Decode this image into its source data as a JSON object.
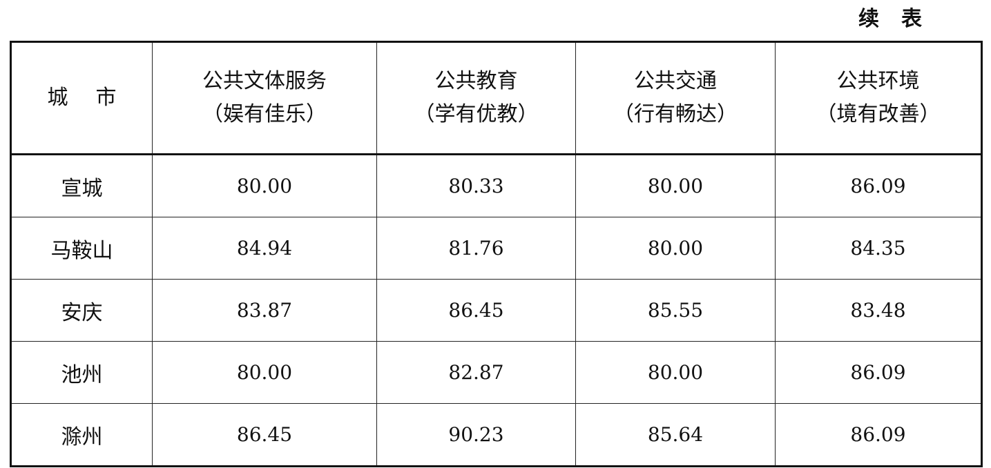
{
  "caption": [
    "续",
    "表"
  ],
  "table": {
    "headers": [
      {
        "line1": "城市",
        "line2": ""
      },
      {
        "line1": "公共文体服务",
        "line2": "（娱有佳乐）"
      },
      {
        "line1": "公共教育",
        "line2": "（学有优教）"
      },
      {
        "line1": "公共交通",
        "line2": "（行有畅达）"
      },
      {
        "line1": "公共环境",
        "line2": "（境有改善）"
      }
    ],
    "rows": [
      [
        "宣城",
        "80.00",
        "80.33",
        "80.00",
        "86.09"
      ],
      [
        "马鞍山",
        "84.94",
        "81.76",
        "80.00",
        "84.35"
      ],
      [
        "安庆",
        "83.87",
        "86.45",
        "85.55",
        "83.48"
      ],
      [
        "池州",
        "80.00",
        "82.87",
        "80.00",
        "86.09"
      ],
      [
        "滁州",
        "86.45",
        "90.23",
        "85.64",
        "86.09"
      ]
    ]
  }
}
